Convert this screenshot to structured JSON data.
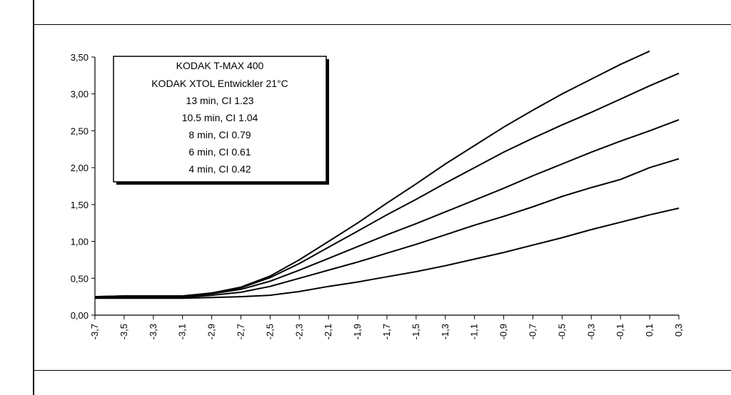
{
  "chart_data": {
    "type": "line",
    "title": "",
    "xlabel": "",
    "ylabel": "",
    "xlim": [
      -3.7,
      0.3
    ],
    "ylim": [
      0,
      3.5
    ],
    "grid": false,
    "legend_position": "top-left",
    "legend_lines": [
      "KODAK T-MAX 400",
      "KODAK XTOL Entwickler 21°C",
      "13 min, CI 1.23",
      "10.5 min, CI 1.04",
      "8 min, CI 0.79",
      "6 min, CI 0.61",
      "4 min, CI 0.42"
    ],
    "x_tick_labels": [
      "-3,7",
      "-3,5",
      "-3,3",
      "-3,1",
      "-2,9",
      "-2,7",
      "-2,5",
      "-2,3",
      "-2,1",
      "-1,9",
      "-1,7",
      "-1,5",
      "-1,3",
      "-1,1",
      "-0,9",
      "-0,7",
      "-0,5",
      "-0,3",
      "-0,1",
      "0,1",
      "0,3"
    ],
    "y_tick_labels": [
      "0,00",
      "0,50",
      "1,00",
      "1,50",
      "2,00",
      "2,50",
      "3,00",
      "3,50"
    ],
    "x": [
      -3.7,
      -3.5,
      -3.3,
      -3.1,
      -2.9,
      -2.7,
      -2.5,
      -2.3,
      -2.1,
      -1.9,
      -1.7,
      -1.5,
      -1.3,
      -1.1,
      -0.9,
      -0.7,
      -0.5,
      -0.3,
      -0.1,
      0.1,
      0.3
    ],
    "series": [
      {
        "values": [
          0.25,
          0.26,
          0.26,
          0.26,
          0.3,
          0.38,
          0.53,
          0.75,
          1.0,
          1.25,
          1.52,
          1.78,
          2.05,
          2.3,
          2.55,
          2.78,
          3.0,
          3.2,
          3.4,
          3.58,
          null
        ]
      },
      {
        "values": [
          0.25,
          0.26,
          0.26,
          0.26,
          0.3,
          0.37,
          0.51,
          0.7,
          0.92,
          1.14,
          1.36,
          1.57,
          1.79,
          2.0,
          2.21,
          2.4,
          2.58,
          2.75,
          2.93,
          3.11,
          3.28
        ]
      },
      {
        "values": [
          0.25,
          0.25,
          0.25,
          0.25,
          0.29,
          0.35,
          0.46,
          0.61,
          0.77,
          0.93,
          1.09,
          1.24,
          1.4,
          1.56,
          1.72,
          1.89,
          2.05,
          2.21,
          2.36,
          2.5,
          2.65
        ]
      },
      {
        "values": [
          0.24,
          0.24,
          0.24,
          0.24,
          0.27,
          0.31,
          0.39,
          0.5,
          0.61,
          0.72,
          0.84,
          0.96,
          1.09,
          1.22,
          1.34,
          1.47,
          1.61,
          1.73,
          1.84,
          2.0,
          2.12
        ]
      },
      {
        "values": [
          0.23,
          0.23,
          0.23,
          0.23,
          0.24,
          0.25,
          0.27,
          0.32,
          0.39,
          0.45,
          0.52,
          0.59,
          0.67,
          0.76,
          0.85,
          0.95,
          1.05,
          1.16,
          1.26,
          1.36,
          1.45
        ]
      }
    ]
  }
}
